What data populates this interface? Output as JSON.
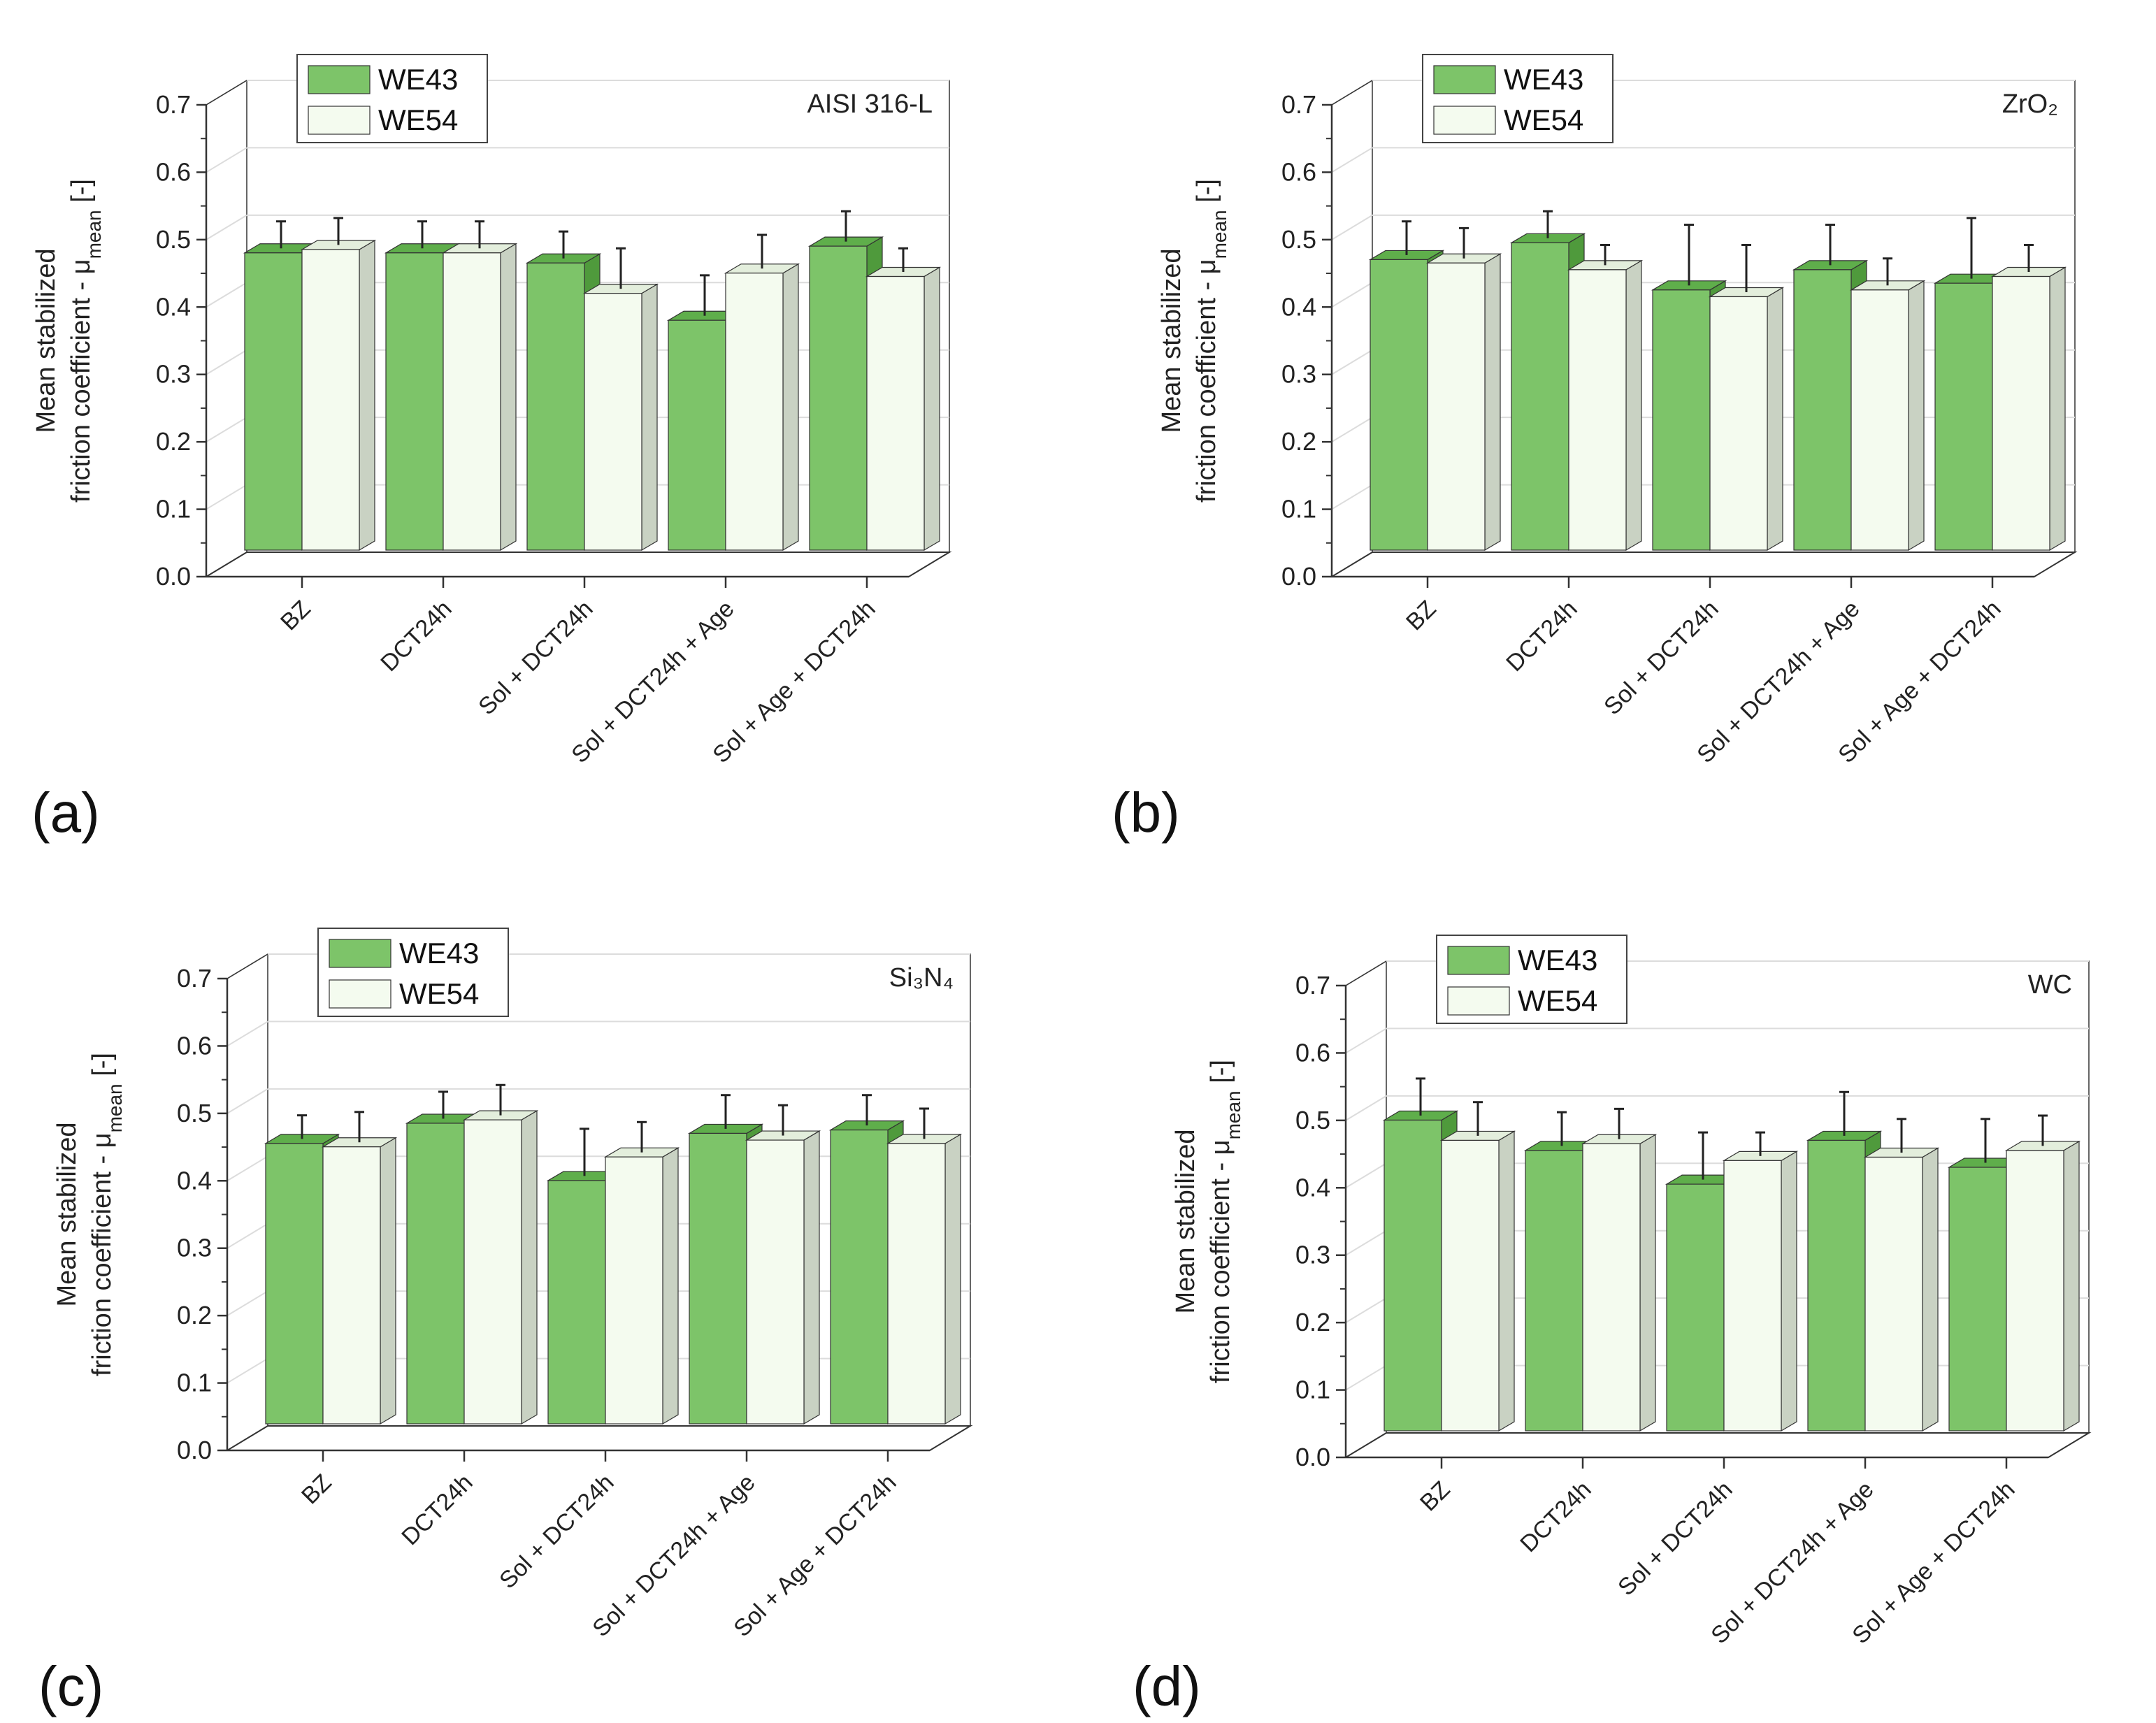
{
  "colors": {
    "we43_front": "#7dc469",
    "we43_top": "#5fae4b",
    "we43_side": "#4f9a3c",
    "we54_front": "#f4fbef",
    "we54_top": "#e3eedc",
    "we54_side": "#c9d2c3",
    "grid": "#dcdcdc",
    "axis": "#333333"
  },
  "chart_data": [
    {
      "type": "bar",
      "panel_label": "(a)",
      "material": "AISI 316-L",
      "ylabel_line1": "Mean stabilized",
      "ylabel_line2": "friction coefficient - μ",
      "ylabel_sub": "mean",
      "ylabel_unit": " [-]",
      "yticks": [
        "0.0",
        "0.1",
        "0.2",
        "0.3",
        "0.4",
        "0.5",
        "0.6",
        "0.7"
      ],
      "ylim": [
        0,
        0.7
      ],
      "categories": [
        "BZ",
        "DCT24h",
        "Sol + DCT24h",
        "Sol + DCT24h + Age",
        "Sol + Age + DCT24h"
      ],
      "series": [
        {
          "name": "WE43",
          "values": [
            0.47,
            0.47,
            0.455,
            0.37,
            0.48
          ],
          "errors": [
            0.04,
            0.04,
            0.04,
            0.06,
            0.045
          ]
        },
        {
          "name": "WE54",
          "values": [
            0.475,
            0.47,
            0.41,
            0.44,
            0.435
          ],
          "errors": [
            0.04,
            0.04,
            0.06,
            0.05,
            0.035
          ]
        }
      ]
    },
    {
      "type": "bar",
      "panel_label": "(b)",
      "material": "ZrO₂",
      "ylabel_line1": "Mean stabilized",
      "ylabel_line2": "friction coefficient - μ",
      "ylabel_sub": "mean",
      "ylabel_unit": " [-]",
      "yticks": [
        "0.0",
        "0.1",
        "0.2",
        "0.3",
        "0.4",
        "0.5",
        "0.6",
        "0.7"
      ],
      "ylim": [
        0,
        0.7
      ],
      "categories": [
        "BZ",
        "DCT24h",
        "Sol + DCT24h",
        "Sol + DCT24h + Age",
        "Sol + Age + DCT24h"
      ],
      "series": [
        {
          "name": "WE43",
          "values": [
            0.46,
            0.485,
            0.415,
            0.445,
            0.425
          ],
          "errors": [
            0.05,
            0.04,
            0.09,
            0.06,
            0.09
          ]
        },
        {
          "name": "WE54",
          "values": [
            0.455,
            0.445,
            0.405,
            0.415,
            0.435
          ],
          "errors": [
            0.045,
            0.03,
            0.07,
            0.04,
            0.04
          ]
        }
      ]
    },
    {
      "type": "bar",
      "panel_label": "(c)",
      "material": "Si₃N₄",
      "ylabel_line1": "Mean stabilized",
      "ylabel_line2": "friction coefficient - μ",
      "ylabel_sub": "mean",
      "ylabel_unit": " [-]",
      "yticks": [
        "0.0",
        "0.1",
        "0.2",
        "0.3",
        "0.4",
        "0.5",
        "0.6",
        "0.7"
      ],
      "ylim": [
        0,
        0.7
      ],
      "categories": [
        "BZ",
        "DCT24h",
        "Sol + DCT24h",
        "Sol + DCT24h + Age",
        "Sol + Age + DCT24h"
      ],
      "series": [
        {
          "name": "WE43",
          "values": [
            0.445,
            0.475,
            0.39,
            0.46,
            0.465
          ],
          "errors": [
            0.035,
            0.04,
            0.07,
            0.05,
            0.045
          ]
        },
        {
          "name": "WE54",
          "values": [
            0.44,
            0.48,
            0.425,
            0.45,
            0.445
          ],
          "errors": [
            0.045,
            0.045,
            0.045,
            0.045,
            0.045
          ]
        }
      ]
    },
    {
      "type": "bar",
      "panel_label": "(d)",
      "material": "WC",
      "ylabel_line1": "Mean stabilized",
      "ylabel_line2": "friction coefficient - μ",
      "ylabel_sub": "mean",
      "ylabel_unit": " [-]",
      "yticks": [
        "0.0",
        "0.1",
        "0.2",
        "0.3",
        "0.4",
        "0.5",
        "0.6",
        "0.7"
      ],
      "ylim": [
        0,
        0.7
      ],
      "categories": [
        "BZ",
        "DCT24h",
        "Sol + DCT24h",
        "Sol + DCT24h + Age",
        "Sol + Age + DCT24h"
      ],
      "series": [
        {
          "name": "WE43",
          "values": [
            0.49,
            0.445,
            0.395,
            0.46,
            0.42
          ],
          "errors": [
            0.055,
            0.05,
            0.07,
            0.065,
            0.065
          ]
        },
        {
          "name": "WE54",
          "values": [
            0.46,
            0.455,
            0.43,
            0.435,
            0.445
          ],
          "errors": [
            0.05,
            0.045,
            0.035,
            0.05,
            0.045
          ]
        }
      ]
    }
  ]
}
